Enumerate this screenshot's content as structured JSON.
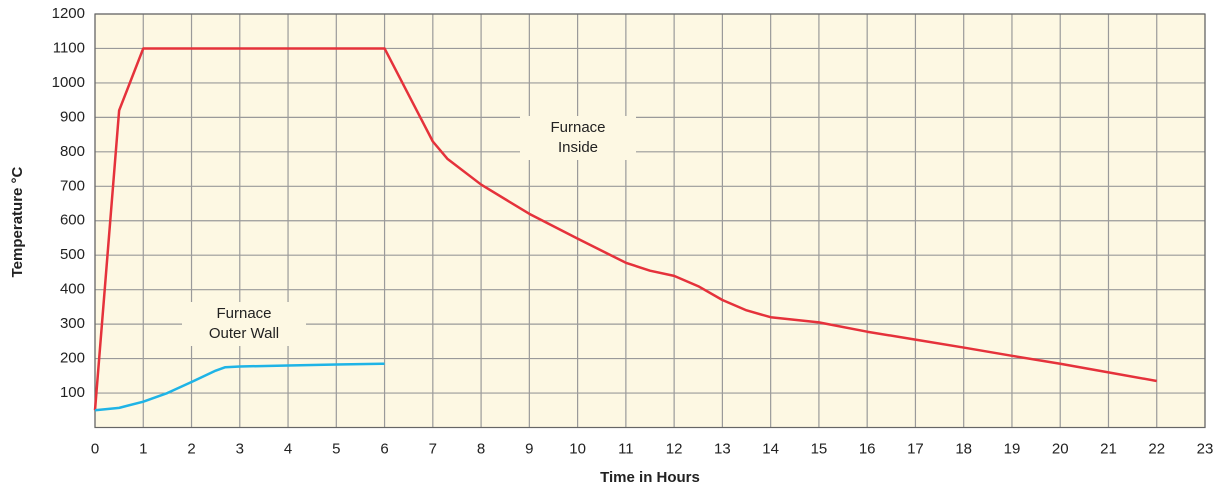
{
  "chart_data": {
    "type": "line",
    "x_label": "Time in Hours",
    "y_label": "Temperature °C",
    "xlim": [
      0,
      23
    ],
    "xticks": [
      0,
      1,
      2,
      3,
      4,
      5,
      6,
      7,
      8,
      9,
      10,
      11,
      12,
      13,
      14,
      15,
      16,
      17,
      18,
      19,
      20,
      21,
      22,
      23
    ],
    "ylim": [
      0,
      1200
    ],
    "yticks": [
      100,
      200,
      300,
      400,
      500,
      600,
      700,
      800,
      900,
      1000,
      1100,
      1200
    ],
    "grid": true,
    "series": [
      {
        "name": "Furnace Inside",
        "color": "#e5323b",
        "x": [
          0,
          0.5,
          1,
          6,
          7,
          7.3,
          8,
          9,
          10,
          11,
          11.5,
          12,
          12.5,
          13,
          13.5,
          14,
          15,
          16,
          17,
          18,
          19,
          20,
          21,
          22
        ],
        "values": [
          50,
          920,
          1100,
          1100,
          830,
          780,
          705,
          620,
          548,
          478,
          455,
          440,
          410,
          370,
          340,
          320,
          305,
          278,
          255,
          232,
          208,
          185,
          160,
          135
        ]
      },
      {
        "name": "Furnace Outer Wall",
        "color": "#1fb4e6",
        "x": [
          0,
          0.5,
          1,
          1.5,
          2,
          2.5,
          2.7,
          3,
          4,
          5,
          6
        ],
        "values": [
          50,
          57,
          75,
          100,
          132,
          165,
          175,
          177,
          180,
          183,
          185
        ]
      }
    ],
    "annotations": [
      {
        "lines": [
          "Furnace",
          "Inside"
        ]
      },
      {
        "lines": [
          "Furnace",
          "Outer Wall"
        ]
      }
    ]
  }
}
